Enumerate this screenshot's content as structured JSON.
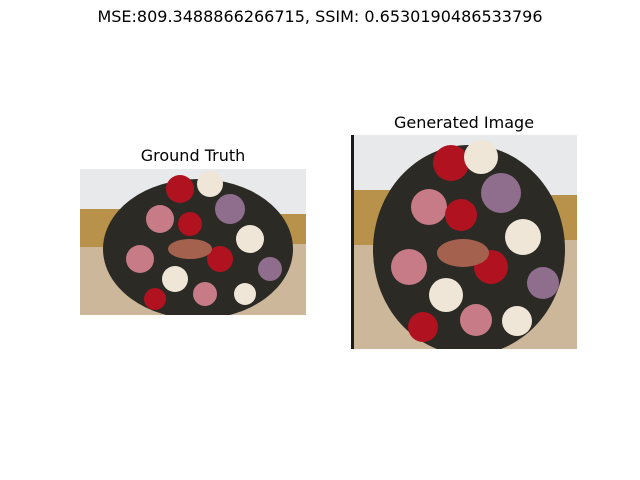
{
  "figure": {
    "title": "MSE:809.3488866266715, SSIM: 0.6530190486533796"
  },
  "panels": [
    {
      "title": "Ground Truth",
      "image": "rose bouquet held against beach background photo"
    },
    {
      "title": "Generated Image",
      "image": "rose bouquet held against beach background photo"
    }
  ],
  "colors": {
    "sky": "#e7e9ea",
    "sand": "#cdb79b",
    "grass": "#b8924a",
    "rose_red": "#b0121f",
    "rose_pink": "#c77b86",
    "rose_mauve": "#8e6e8c",
    "rose_cream": "#efe6d8",
    "foliage": "#2b2a25",
    "skin": "#a4624e"
  }
}
